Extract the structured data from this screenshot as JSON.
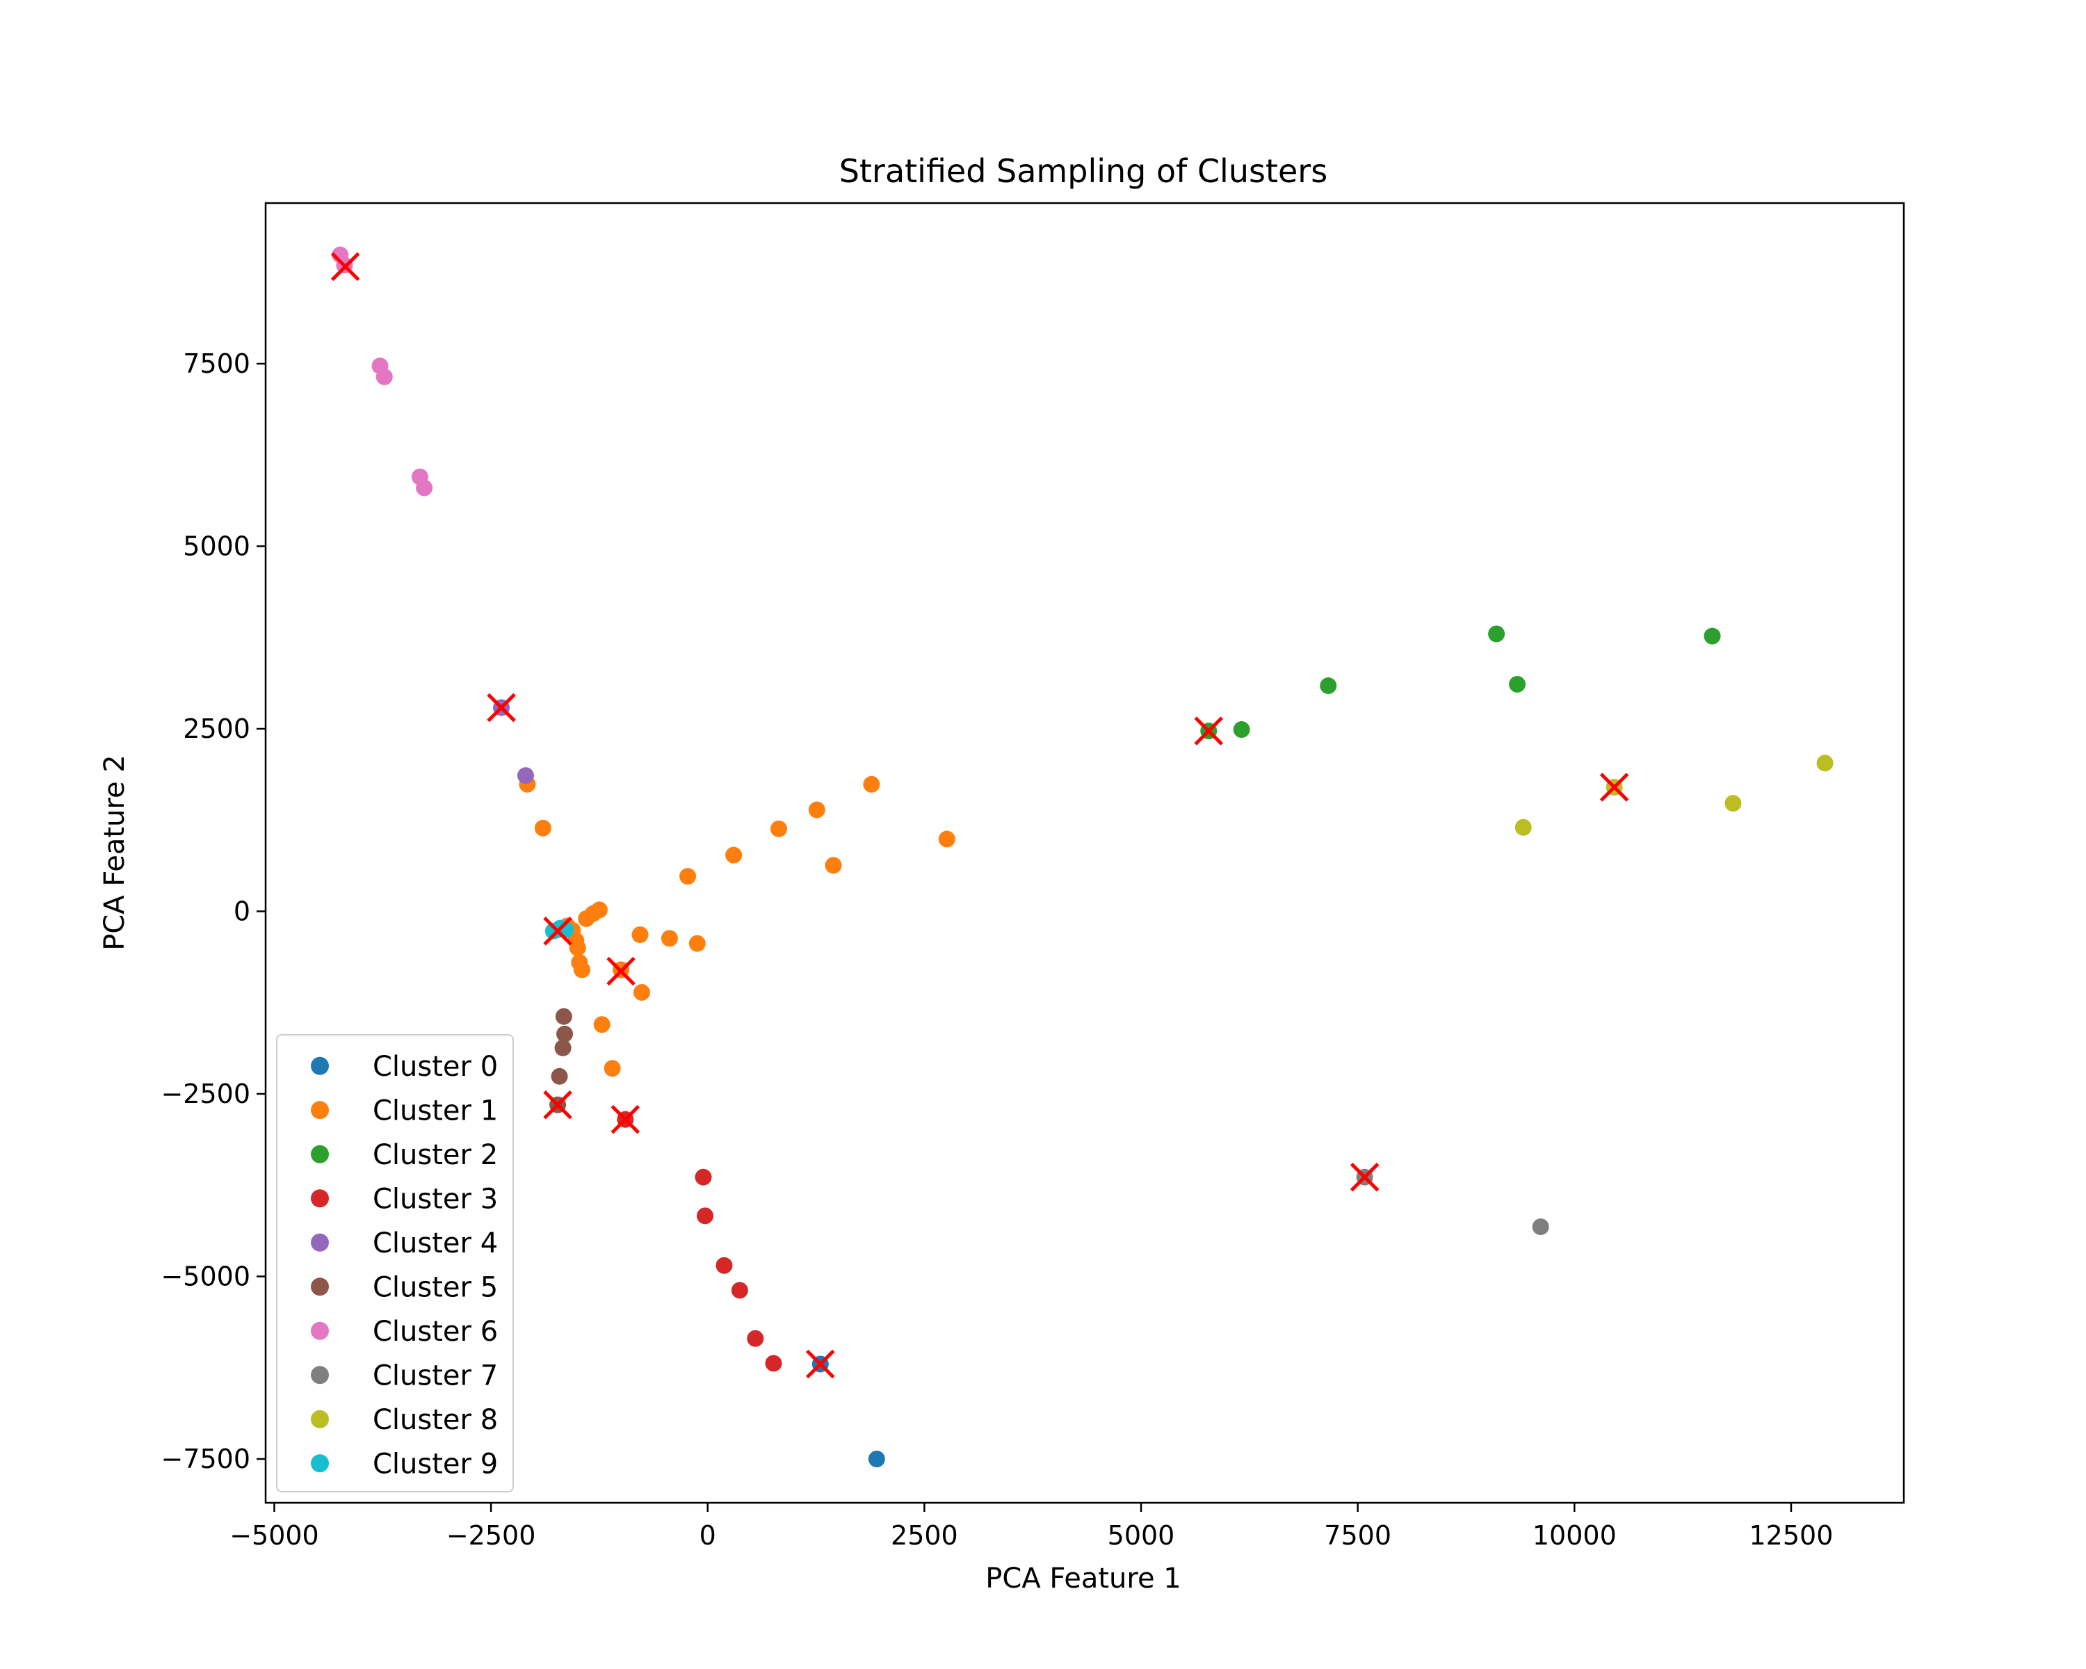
{
  "chart_data": {
    "type": "scatter",
    "title": "Stratified Sampling of Clusters",
    "xlabel": "PCA Feature 1",
    "ylabel": "PCA Feature 2",
    "xlim": [
      -5100,
      13800
    ],
    "ylim": [
      -8100,
      9700
    ],
    "xticks": [
      -5000,
      -2500,
      0,
      2500,
      5000,
      7500,
      10000,
      12500
    ],
    "xtick_labels": [
      "−5000",
      "−2500",
      "0",
      "2500",
      "5000",
      "7500",
      "10000",
      "12500"
    ],
    "yticks": [
      -7500,
      -5000,
      -2500,
      0,
      2500,
      5000,
      7500
    ],
    "ytick_labels": [
      "−7500",
      "−5000",
      "−2500",
      "0",
      "2500",
      "5000",
      "7500"
    ],
    "grid": false,
    "legend_position": "lower-left",
    "series": [
      {
        "name": "Cluster 0",
        "color": "#1f77b4",
        "points": [
          [
            1300,
            -6200
          ],
          [
            1950,
            -7500
          ]
        ]
      },
      {
        "name": "Cluster 1",
        "color": "#ff7f0e",
        "points": [
          [
            -2080,
            1740
          ],
          [
            -1900,
            1140
          ],
          [
            -1720,
            -250
          ],
          [
            -1620,
            -200
          ],
          [
            -1560,
            -260
          ],
          [
            -1520,
            -400
          ],
          [
            -1500,
            -500
          ],
          [
            -1480,
            -700
          ],
          [
            -1450,
            -800
          ],
          [
            -1400,
            -100
          ],
          [
            -1320,
            -30
          ],
          [
            -1250,
            20
          ],
          [
            -1220,
            -1550
          ],
          [
            -1100,
            -2150
          ],
          [
            -1000,
            -800
          ],
          [
            -780,
            -320
          ],
          [
            -760,
            -1110
          ],
          [
            -440,
            -370
          ],
          [
            -230,
            480
          ],
          [
            -120,
            -440
          ],
          [
            300,
            770
          ],
          [
            820,
            1130
          ],
          [
            1260,
            1390
          ],
          [
            1450,
            630
          ],
          [
            1890,
            1740
          ],
          [
            2760,
            990
          ]
        ]
      },
      {
        "name": "Cluster 2",
        "color": "#2ca02c",
        "points": [
          [
            5780,
            2470
          ],
          [
            6160,
            2490
          ],
          [
            7160,
            3090
          ],
          [
            9100,
            3800
          ],
          [
            9340,
            3110
          ],
          [
            11590,
            3770
          ]
        ]
      },
      {
        "name": "Cluster 3",
        "color": "#d62728",
        "points": [
          [
            -50,
            -3640
          ],
          [
            -30,
            -4170
          ],
          [
            190,
            -4850
          ],
          [
            370,
            -5190
          ],
          [
            550,
            -5850
          ],
          [
            760,
            -6190
          ],
          [
            -950,
            -2850
          ]
        ]
      },
      {
        "name": "Cluster 4",
        "color": "#9467bd",
        "points": [
          [
            -2380,
            2790
          ],
          [
            -2100,
            1860
          ]
        ]
      },
      {
        "name": "Cluster 5",
        "color": "#8c564b",
        "points": [
          [
            -1660,
            -1440
          ],
          [
            -1650,
            -1680
          ],
          [
            -1670,
            -1870
          ],
          [
            -1710,
            -2260
          ],
          [
            -1730,
            -2650
          ]
        ]
      },
      {
        "name": "Cluster 6",
        "color": "#e377c2",
        "points": [
          [
            -4240,
            8990
          ],
          [
            -4190,
            8850
          ],
          [
            -3780,
            7470
          ],
          [
            -3730,
            7320
          ],
          [
            -3320,
            5950
          ],
          [
            -3270,
            5800
          ]
        ]
      },
      {
        "name": "Cluster 7",
        "color": "#7f7f7f",
        "points": [
          [
            7580,
            -3640
          ],
          [
            9610,
            -4320
          ]
        ]
      },
      {
        "name": "Cluster 8",
        "color": "#bcbd22",
        "points": [
          [
            9410,
            1150
          ],
          [
            10460,
            1700
          ],
          [
            11830,
            1480
          ],
          [
            12890,
            2030
          ]
        ]
      },
      {
        "name": "Cluster 9",
        "color": "#17becf",
        "points": [
          [
            -1780,
            -270
          ],
          [
            -1700,
            -230
          ],
          [
            -1640,
            -250
          ]
        ]
      }
    ],
    "sampled_markers": {
      "color": "#ff0000",
      "points": [
        [
          -4180,
          8830
        ],
        [
          -2380,
          2790
        ],
        [
          -1730,
          -270
        ],
        [
          -1000,
          -820
        ],
        [
          -1730,
          -2650
        ],
        [
          -950,
          -2850
        ],
        [
          1300,
          -6200
        ],
        [
          5780,
          2470
        ],
        [
          7580,
          -3640
        ],
        [
          10460,
          1700
        ]
      ]
    }
  }
}
